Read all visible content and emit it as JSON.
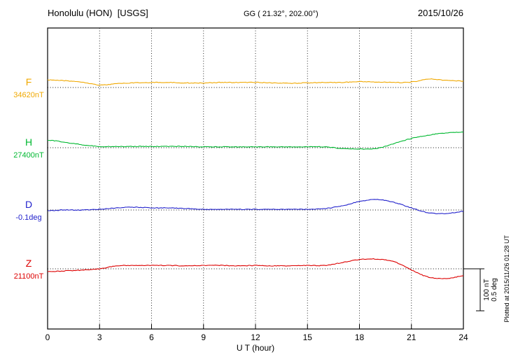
{
  "header": {
    "station": "Honolulu (HON)  [USGS]",
    "geo_coords": "GG ( 21.32°, 202.00°)",
    "date": "2015/10/26"
  },
  "axis": {
    "xlabel": "U T (hour)"
  },
  "side_note": "Plotted at 2015/11/26 01:28 UT",
  "scalebar": {
    "nt_label": "100 nT",
    "deg_label": "0.5 deg"
  },
  "chart_data": {
    "type": "line",
    "title": "Honolulu (HON)  [USGS] magnetogram 2015/10/26",
    "xlabel": "U T (hour)",
    "x_range": [
      0,
      24
    ],
    "x_ticks": [
      0,
      3,
      6,
      9,
      12,
      15,
      18,
      21,
      24
    ],
    "x_hours": [
      0,
      1,
      2,
      3,
      4,
      5,
      6,
      7,
      8,
      9,
      10,
      11,
      12,
      13,
      14,
      15,
      16,
      17,
      18,
      19,
      20,
      21,
      22,
      23,
      24
    ],
    "grid": "dotted vertical lines every 3 hours; dotted horizontal baseline per channel",
    "legend_position": "left channel labels",
    "scale": {
      "nT_per_bar": 100,
      "deg_per_bar": 0.5
    },
    "series": [
      {
        "name": "F",
        "units": "nT",
        "color": "#f0a800",
        "baseline": 34620,
        "baseline_label": "34620nT",
        "offsets": [
          18,
          16,
          13,
          6,
          9,
          11,
          12,
          12,
          11,
          11,
          12,
          12,
          12,
          11,
          10,
          11,
          12,
          12,
          14,
          13,
          12,
          13,
          20,
          17,
          15
        ]
      },
      {
        "name": "H",
        "units": "nT",
        "color": "#00b830",
        "baseline": 27400,
        "baseline_label": "27400nT",
        "offsets": [
          18,
          13,
          7,
          3,
          3,
          3,
          3,
          3,
          3,
          2,
          2,
          2,
          2,
          2,
          2,
          2,
          2,
          -2,
          -3,
          -2,
          10,
          22,
          30,
          35,
          37
        ]
      },
      {
        "name": "D",
        "units": "deg",
        "color": "#2222cc",
        "baseline": -0.1,
        "baseline_label": "-0.1deg",
        "offsets": [
          -0.008,
          0,
          0,
          0.008,
          0.025,
          0.033,
          0.025,
          0.025,
          0.017,
          0.008,
          0.008,
          0.008,
          0.008,
          0.008,
          0.008,
          0.008,
          0.017,
          0.05,
          0.1,
          0.125,
          0.09,
          0.025,
          -0.033,
          -0.042,
          -0.017
        ]
      },
      {
        "name": "Z",
        "units": "nT",
        "color": "#dd0000",
        "baseline": 21100,
        "baseline_label": "21100nT",
        "offsets": [
          -7,
          -5,
          -3,
          0,
          7,
          8,
          8,
          8,
          7,
          8,
          8,
          7,
          8,
          7,
          7,
          8,
          8,
          15,
          22,
          23,
          17,
          -3,
          -20,
          -23,
          -17
        ]
      }
    ]
  }
}
